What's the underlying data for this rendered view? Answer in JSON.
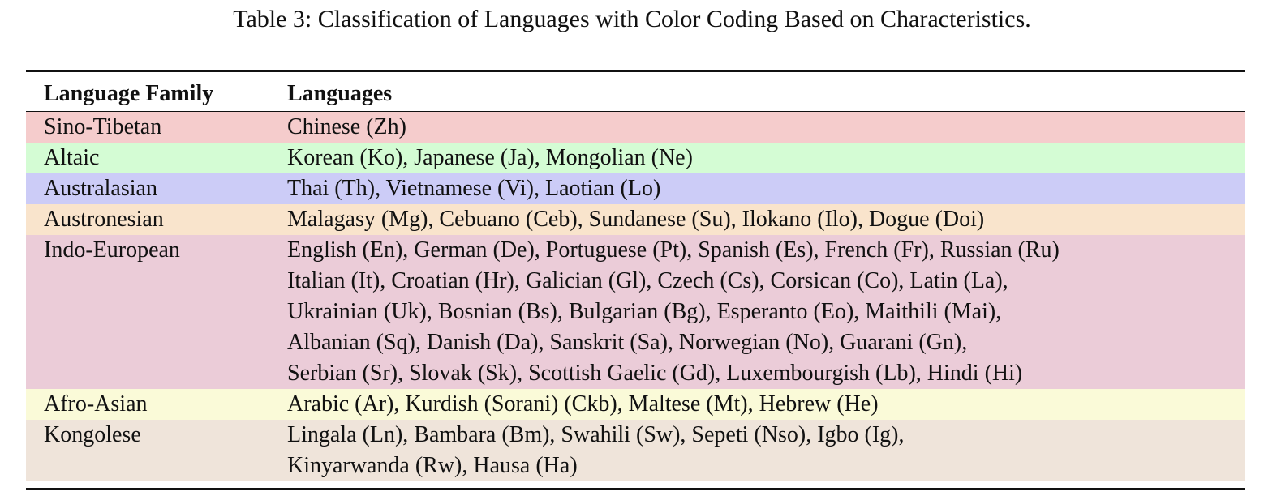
{
  "caption": "Table 3: Classification of Languages with Color Coding Based on Characteristics.",
  "headers": {
    "family": "Language Family",
    "languages": "Languages"
  },
  "rows": [
    {
      "family": "Sino-Tibetan",
      "color": "#f5cccc",
      "lines": [
        "Chinese (Zh)"
      ]
    },
    {
      "family": "Altaic",
      "color": "#d4fcd4",
      "lines": [
        "Korean (Ko), Japanese (Ja), Mongolian (Ne)"
      ]
    },
    {
      "family": "Australasian",
      "color": "#ccccf7",
      "lines": [
        "Thai (Th), Vietnamese (Vi), Laotian (Lo)"
      ]
    },
    {
      "family": "Austronesian",
      "color": "#f9e4cc",
      "lines": [
        "Malagasy (Mg), Cebuano (Ceb), Sundanese (Su), Ilokano (Ilo), Dogue (Doi)"
      ]
    },
    {
      "family": "Indo-European",
      "color": "#ebccd8",
      "lines": [
        "English (En), German (De), Portuguese (Pt), Spanish (Es), French (Fr), Russian (Ru)",
        "Italian (It), Croatian (Hr), Galician (Gl), Czech (Cs), Corsican (Co), Latin (La),",
        "Ukrainian (Uk), Bosnian (Bs), Bulgarian (Bg), Esperanto (Eo), Maithili (Mai),",
        "Albanian (Sq), Danish (Da), Sanskrit (Sa), Norwegian (No), Guarani (Gn),",
        "Serbian (Sr), Slovak (Sk), Scottish Gaelic (Gd), Luxembourgish (Lb), Hindi (Hi)"
      ]
    },
    {
      "family": "Afro-Asian",
      "color": "#fafad8",
      "lines": [
        "Arabic (Ar), Kurdish (Sorani) (Ckb), Maltese (Mt), Hebrew (He)"
      ]
    },
    {
      "family": "Kongolese",
      "color": "#efe4da",
      "lines": [
        "Lingala (Ln), Bambara (Bm), Swahili (Sw), Sepeti (Nso), Igbo (Ig),",
        "Kinyarwanda (Rw), Hausa (Ha)"
      ]
    }
  ]
}
